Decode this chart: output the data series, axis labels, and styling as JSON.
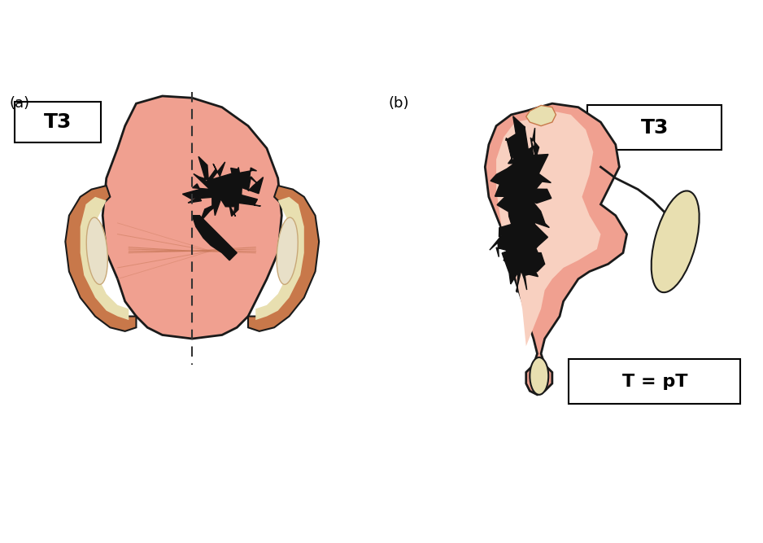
{
  "background_color": "#ffffff",
  "skin_color": "#F0A090",
  "skin_light": "#F5C0B0",
  "skin_outline": "#1a1a1a",
  "cartilage_color": "#E8DFB0",
  "cartilage_outline": "#C8784A",
  "tumor_color": "#111111",
  "label_a": "(a)",
  "label_b": "(b)",
  "box_t3": "T3",
  "box_tpt": "T = pT",
  "dashed_color": "#333333"
}
